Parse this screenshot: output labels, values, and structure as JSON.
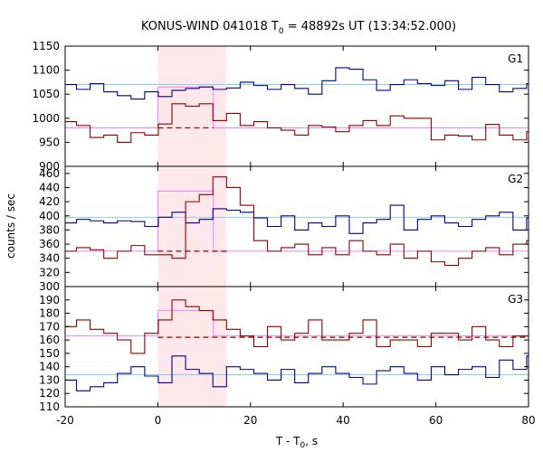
{
  "chart_data": {
    "type": "line",
    "title_main": "KONUS-WIND 041018 T",
    "title_sub": "0",
    "title_rest": " = 48892s UT (13:34:52.000)",
    "xlabel_main": "T - T",
    "xlabel_sub": "0",
    "xlabel_rest": ", s",
    "ylabel": "counts / sec",
    "xlim": [
      -20,
      80
    ],
    "x_ticks": [
      -20,
      0,
      20,
      40,
      60,
      80
    ],
    "x_tick_labels": [
      "-20",
      "0",
      "20",
      "40",
      "60",
      "80"
    ],
    "highlight_interval": [
      0,
      14.8
    ],
    "highlight_color": "#ffe8ec",
    "bin_width": 2.944,
    "bin_start": -20.5,
    "panels": [
      {
        "label": "G1",
        "ylim": [
          900,
          1150
        ],
        "y_ticks": [
          900,
          950,
          1000,
          1050,
          1100,
          1150
        ],
        "y_tick_labels": [
          "900",
          "950",
          "1000",
          "1050",
          "1100",
          "1150"
        ],
        "series": [
          {
            "color": "#00008b",
            "values": [
              1070,
              1060,
              1072,
              1055,
              1047,
              1040,
              1055,
              1045,
              1058,
              1062,
              1065,
              1060,
              1063,
              1075,
              1068,
              1060,
              1070,
              1062,
              1050,
              1078,
              1105,
              1102,
              1080,
              1058,
              1070,
              1080,
              1072,
              1068,
              1078,
              1060,
              1085,
              1070,
              1055,
              1062,
              1072,
              1060
            ]
          },
          {
            "color": "#8b0000",
            "values": [
              993,
              985,
              960,
              965,
              950,
              970,
              965,
              988,
              1030,
              1025,
              1030,
              995,
              1010,
              985,
              993,
              980,
              975,
              965,
              985,
              982,
              972,
              985,
              995,
              985,
              1005,
              1000,
              1000,
              955,
              965,
              963,
              955,
              987,
              965,
              955,
              972,
              1000
            ]
          }
        ],
        "fits": [
          {
            "color": "#87ceeb",
            "segments": [
              [
                -20,
                80,
                1070
              ]
            ]
          },
          {
            "color": "#ee82ee",
            "segments": [
              [
                -20,
                0,
                980
              ],
              [
                0,
                12,
                1065
              ],
              [
                12,
                80,
                980
              ]
            ]
          }
        ],
        "dashed_fit": {
          "color": "#8b0000",
          "range": [
            0,
            12
          ],
          "value": 980
        }
      },
      {
        "label": "G2",
        "ylim": [
          300,
          470
        ],
        "y_ticks": [
          300,
          320,
          340,
          360,
          380,
          400,
          420,
          440,
          460
        ],
        "y_tick_labels": [
          "300",
          "320",
          "340",
          "360",
          "380",
          "400",
          "420",
          "440",
          "460"
        ],
        "series": [
          {
            "color": "#00008b",
            "values": [
              390,
              395,
              393,
              390,
              393,
              392,
              385,
              398,
              405,
              390,
              395,
              410,
              408,
              405,
              397,
              385,
              400,
              380,
              390,
              385,
              400,
              375,
              390,
              395,
              415,
              380,
              395,
              400,
              390,
              385,
              395,
              400,
              405,
              380,
              397,
              390
            ]
          },
          {
            "color": "#8b0000",
            "values": [
              350,
              355,
              352,
              340,
              350,
              358,
              345,
              345,
              340,
              420,
              430,
              455,
              440,
              415,
              365,
              350,
              355,
              360,
              345,
              355,
              345,
              365,
              350,
              345,
              360,
              340,
              350,
              335,
              330,
              340,
              350,
              355,
              345,
              360,
              365,
              355
            ]
          }
        ],
        "fits": [
          {
            "color": "#87ceeb",
            "segments": [
              [
                -20,
                80,
                398
              ]
            ]
          },
          {
            "color": "#ee82ee",
            "segments": [
              [
                -20,
                0,
                350
              ],
              [
                0,
                12,
                435
              ],
              [
                12,
                80,
                350
              ]
            ]
          }
        ],
        "dashed_fit": {
          "color": "#8b0000",
          "range": [
            0,
            15
          ],
          "value": 350
        }
      },
      {
        "label": "G3",
        "ylim": [
          110,
          200
        ],
        "y_ticks": [
          110,
          120,
          130,
          140,
          150,
          160,
          170,
          180,
          190
        ],
        "y_tick_labels": [
          "110",
          "120",
          "130",
          "140",
          "150",
          "160",
          "170",
          "180",
          "190"
        ],
        "series": [
          {
            "color": "#00008b",
            "values": [
              130,
              122,
              125,
              128,
              135,
              140,
              133,
              128,
              148,
              138,
              135,
              125,
              140,
              138,
              135,
              130,
              138,
              128,
              135,
              140,
              135,
              132,
              127,
              137,
              140,
              135,
              130,
              140,
              134,
              138,
              140,
              132,
              145,
              138,
              148,
              143
            ]
          },
          {
            "color": "#8b0000",
            "values": [
              170,
              175,
              168,
              165,
              160,
              150,
              165,
              175,
              190,
              185,
              182,
              175,
              168,
              163,
              155,
              170,
              160,
              165,
              175,
              160,
              160,
              165,
              175,
              155,
              160,
              160,
              155,
              165,
              165,
              160,
              170,
              160,
              155,
              163,
              163,
              150
            ]
          }
        ],
        "fits": [
          {
            "color": "#87ceeb",
            "segments": [
              [
                -20,
                80,
                134
              ]
            ]
          },
          {
            "color": "#ee82ee",
            "segments": [
              [
                -20,
                0,
                163
              ],
              [
                0,
                12,
                182
              ],
              [
                12,
                80,
                163
              ]
            ]
          }
        ],
        "dashed_fit": {
          "color": "#8b0000",
          "range": [
            0,
            80
          ],
          "value": 162
        }
      }
    ]
  }
}
